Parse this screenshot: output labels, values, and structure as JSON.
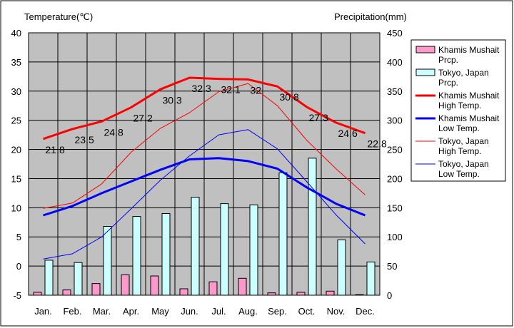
{
  "chart_data": {
    "type": "bar",
    "categories": [
      "Jan.",
      "Feb.",
      "Mar.",
      "Apr.",
      "May",
      "Jun.",
      "Jul.",
      "Aug.",
      "Sep.",
      "Oct.",
      "Nov.",
      "Dec."
    ],
    "y_left": {
      "label": "Temperature(℃)",
      "range": [
        -5,
        40
      ],
      "ticks": [
        -5,
        0,
        5,
        10,
        15,
        20,
        25,
        30,
        35,
        40
      ]
    },
    "y_right": {
      "label": "Precipitation(mm)",
      "range": [
        0,
        450
      ],
      "ticks": [
        0,
        50,
        100,
        150,
        200,
        250,
        300,
        350,
        400,
        450
      ]
    },
    "grid": true,
    "legend_position": "right",
    "bar_series": [
      {
        "name": "Khamis Mushait Prcp.",
        "axis": "right",
        "color": "#ff99cc",
        "values": [
          5,
          9,
          20,
          35,
          33,
          11,
          23,
          29,
          4,
          5,
          7,
          1
        ]
      },
      {
        "name": "Tokyo, Japan Prcp.",
        "axis": "right",
        "color": "#ccffff",
        "values": [
          60,
          56,
          118,
          135,
          140,
          168,
          157,
          155,
          210,
          235,
          95,
          57
        ]
      }
    ],
    "line_series": [
      {
        "name": "Khamis Mushait High Temp.",
        "axis": "left",
        "color": "#ff0000",
        "width": "thick",
        "values": [
          21.8,
          23.5,
          24.8,
          27.2,
          30.3,
          32.3,
          32.1,
          32,
          30.8,
          27.3,
          24.6,
          22.8
        ],
        "labels": [
          "21.8",
          "23.5",
          "24.8",
          "27.2",
          "30.3",
          "32.3",
          "32.1",
          "32",
          "30.8",
          "27.3",
          "24.6",
          "22.8"
        ]
      },
      {
        "name": "Khamis Mushait Low Temp.",
        "axis": "left",
        "color": "#0000ff",
        "width": "thick",
        "values": [
          8.7,
          10.3,
          12.5,
          14.5,
          16.5,
          18.3,
          18.5,
          18,
          16.7,
          13.5,
          10.7,
          8.7
        ]
      },
      {
        "name": "Tokyo, Japan High Temp.",
        "axis": "left",
        "color": "#ff0000",
        "width": "thin",
        "values": [
          9.9,
          10.8,
          14.1,
          19.5,
          23.6,
          26.3,
          29.9,
          31.3,
          27.5,
          21.6,
          16.7,
          12.2
        ]
      },
      {
        "name": "Tokyo, Japan Low Temp.",
        "axis": "left",
        "color": "#0000ff",
        "width": "thin",
        "values": [
          1.2,
          2.1,
          5.0,
          9.8,
          14.7,
          18.9,
          22.5,
          23.4,
          20.1,
          14.5,
          8.8,
          3.8
        ]
      }
    ],
    "legend": [
      {
        "line1": "Khamis Mushait",
        "line2": "Prcp.",
        "kind": "bar",
        "color": "#ff99cc"
      },
      {
        "line1": "Tokyo, Japan",
        "line2": "Prcp.",
        "kind": "bar",
        "color": "#ccffff"
      },
      {
        "line1": "Khamis Mushait",
        "line2": "High Temp.",
        "kind": "line",
        "color": "#ff0000",
        "width": "thick"
      },
      {
        "line1": "Khamis Mushait",
        "line2": "Low Temp.",
        "kind": "line",
        "color": "#0000ff",
        "width": "thick"
      },
      {
        "line1": "Tokyo, Japan",
        "line2": "High Temp.",
        "kind": "line",
        "color": "#ff0000",
        "width": "thin"
      },
      {
        "line1": "Tokyo, Japan",
        "line2": "Low Temp.",
        "kind": "line",
        "color": "#0000ff",
        "width": "thin"
      }
    ],
    "colors": {
      "plot_background": "#c0c0c0",
      "grid": "#000000",
      "frame": "#000000"
    }
  }
}
